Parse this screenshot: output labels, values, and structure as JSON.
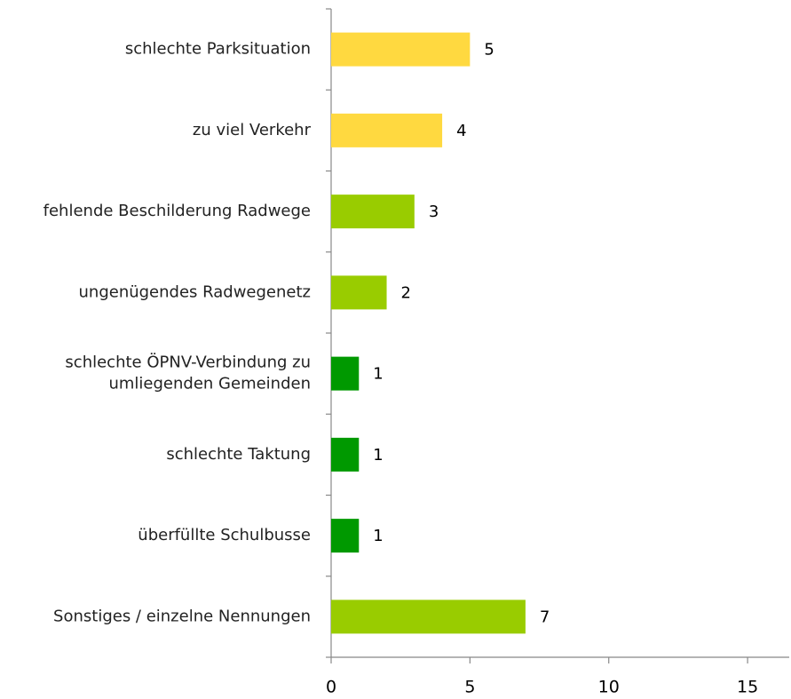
{
  "chart_data": {
    "type": "barh",
    "categories": [
      "schlechte Parksituation",
      "zu viel Verkehr",
      "fehlende Beschilderung Radwege",
      "ungenügendes Radwegenetz",
      [
        "schlechte ÖPNV-Verbindung zu",
        "umliegenden Gemeinden"
      ],
      "schlechte Taktung",
      "überfüllte Schulbusse",
      "Sonstiges / einzelne Nennungen"
    ],
    "values": [
      5,
      4,
      3,
      2,
      1,
      1,
      1,
      7
    ],
    "colors": [
      "#ffd940",
      "#ffd940",
      "#99cc00",
      "#99cc00",
      "#009900",
      "#009900",
      "#009900",
      "#99cc00"
    ],
    "xlim": [
      0,
      16.5
    ],
    "xticks": [
      0,
      5,
      10,
      15
    ],
    "grid": false
  }
}
